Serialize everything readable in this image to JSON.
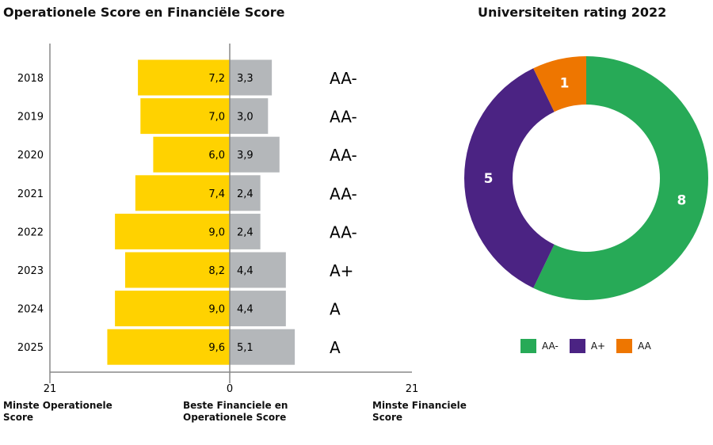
{
  "chart_data": [
    {
      "type": "bar",
      "title": "Operationele Score en Financiële Score",
      "orientation": "horizontal-diverging",
      "categories": [
        "2018",
        "2019",
        "2020",
        "2021",
        "2022",
        "2023",
        "2024",
        "2025"
      ],
      "series": [
        {
          "values": [
            7.2,
            7.0,
            6.0,
            7.4,
            9.0,
            8.2,
            9.0,
            9.6
          ],
          "labels": [
            "7,2",
            "7,0",
            "6,0",
            "7,4",
            "9,0",
            "8,2",
            "9,0",
            "9,6"
          ],
          "color": "#FFD200"
        },
        {
          "values": [
            3.3,
            3.0,
            3.9,
            2.4,
            2.4,
            4.4,
            4.4,
            5.1
          ],
          "labels": [
            "3,3",
            "3,0",
            "3,9",
            "2,4",
            "2,4",
            "4,4",
            "4,4",
            "5,1"
          ],
          "color": "#B4B7BA"
        }
      ],
      "ratings": [
        "AA-",
        "AA-",
        "AA-",
        "AA-",
        "AA-",
        "A+",
        "A",
        "A"
      ],
      "x_ticks": [
        "21",
        "0",
        "21"
      ],
      "x_labels": {
        "left": "Minste Operationele Score",
        "center": "Beste Financiele en Operationele Score",
        "right": "Minste Financiele Score"
      },
      "grid": false
    },
    {
      "type": "pie",
      "donut": true,
      "title": "Universiteiten rating 2022",
      "slices": [
        {
          "name": "AA-",
          "value": 8,
          "color": "#27AA57"
        },
        {
          "name": "A+",
          "value": 5,
          "color": "#4B2383"
        },
        {
          "name": "AA",
          "value": 1,
          "color": "#EE7600"
        }
      ],
      "legend": "bottom"
    }
  ]
}
